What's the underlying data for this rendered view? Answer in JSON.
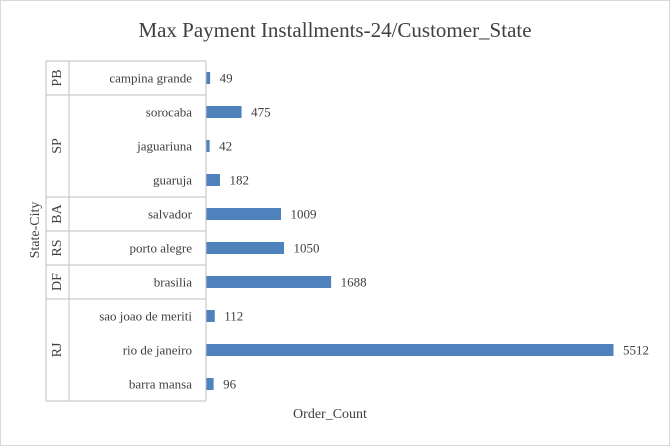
{
  "chart_data": {
    "type": "bar",
    "orientation": "horizontal",
    "title": "Max Payment Installments-24/Customer_State",
    "xlabel": "Order_Count",
    "ylabel": "State-City",
    "bar_color": "#4f81bd",
    "gridlines": false,
    "data_labels": true,
    "groups": [
      {
        "state": "PB",
        "cities": [
          "campina grande"
        ]
      },
      {
        "state": "SP",
        "cities": [
          "sorocaba",
          "jaguariuna",
          "guaruja"
        ]
      },
      {
        "state": "BA",
        "cities": [
          "salvador"
        ]
      },
      {
        "state": "RS",
        "cities": [
          "porto alegre"
        ]
      },
      {
        "state": "DF",
        "cities": [
          "brasilia"
        ]
      },
      {
        "state": "RJ",
        "cities": [
          "sao joao de meriti",
          "rio de janeiro",
          "barra mansa"
        ]
      }
    ],
    "categories": [
      "campina grande",
      "sorocaba",
      "jaguariuna",
      "guaruja",
      "salvador",
      "porto alegre",
      "brasilia",
      "sao joao de meriti",
      "rio de janeiro",
      "barra mansa"
    ],
    "values": [
      49,
      475,
      42,
      182,
      1009,
      1050,
      1688,
      112,
      5512,
      96
    ]
  }
}
